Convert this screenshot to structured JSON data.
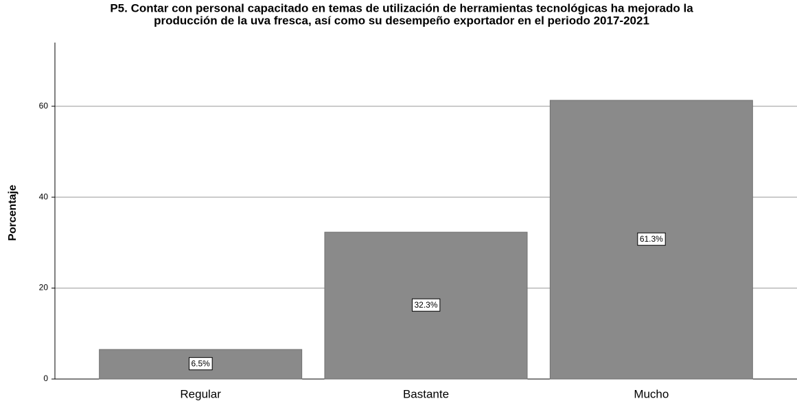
{
  "chart_data": {
    "type": "bar",
    "title": [
      "P5.  Contar con personal capacitado en temas de utilización de herramientas tecnológicas ha mejorado la",
      "producción de la uva fresca, así como su desempeño exportador en el periodo 2017-2021"
    ],
    "y_label": "Porcentaje",
    "categories": [
      "Regular",
      "Bastante",
      "Mucho"
    ],
    "values": [
      6.5,
      32.3,
      61.3
    ],
    "value_labels": [
      "6.5%",
      "32.3%",
      "61.3%"
    ],
    "color": "#8a8a8a",
    "ylim": [
      0,
      74
    ],
    "yticks": [
      0,
      20,
      40,
      60
    ],
    "grid": true
  }
}
